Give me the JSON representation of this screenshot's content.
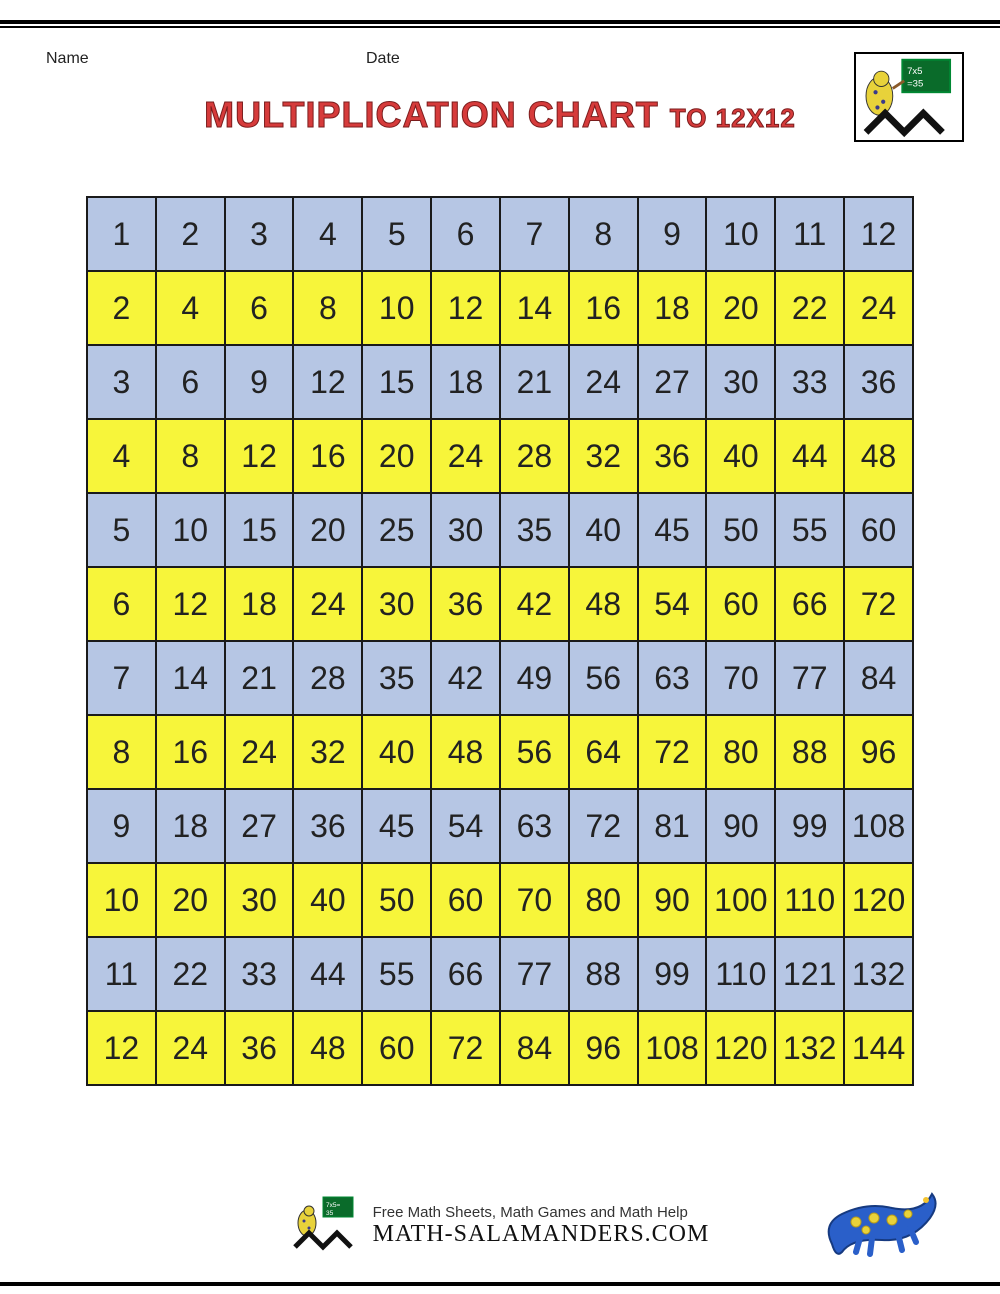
{
  "header": {
    "name_label": "Name",
    "date_label": "Date"
  },
  "title": {
    "main": "MULTIPLICATION CHART",
    "suffix": "TO 12X12",
    "color": "#d63b3b"
  },
  "table": {
    "type": "table",
    "size": 12,
    "row_colors": [
      "#b6c6e4",
      "#f7f53a"
    ],
    "border_color": "#1a1a1a",
    "cell_fontsize": 32,
    "rows": [
      [
        1,
        2,
        3,
        4,
        5,
        6,
        7,
        8,
        9,
        10,
        11,
        12
      ],
      [
        2,
        4,
        6,
        8,
        10,
        12,
        14,
        16,
        18,
        20,
        22,
        24
      ],
      [
        3,
        6,
        9,
        12,
        15,
        18,
        21,
        24,
        27,
        30,
        33,
        36
      ],
      [
        4,
        8,
        12,
        16,
        20,
        24,
        28,
        32,
        36,
        40,
        44,
        48
      ],
      [
        5,
        10,
        15,
        20,
        25,
        30,
        35,
        40,
        45,
        50,
        55,
        60
      ],
      [
        6,
        12,
        18,
        24,
        30,
        36,
        42,
        48,
        54,
        60,
        66,
        72
      ],
      [
        7,
        14,
        21,
        28,
        35,
        42,
        49,
        56,
        63,
        70,
        77,
        84
      ],
      [
        8,
        16,
        24,
        32,
        40,
        48,
        56,
        64,
        72,
        80,
        88,
        96
      ],
      [
        9,
        18,
        27,
        36,
        45,
        54,
        63,
        72,
        81,
        90,
        99,
        108
      ],
      [
        10,
        20,
        30,
        40,
        50,
        60,
        70,
        80,
        90,
        100,
        110,
        120
      ],
      [
        11,
        22,
        33,
        44,
        55,
        66,
        77,
        88,
        99,
        110,
        121,
        132
      ],
      [
        12,
        24,
        36,
        48,
        60,
        72,
        84,
        96,
        108,
        120,
        132,
        144
      ]
    ]
  },
  "footer": {
    "line1": "Free Math Sheets, Math Games and Math Help",
    "line2": "MATH-SALAMANDERS.COM"
  },
  "logo": {
    "board_text": "7x5=35",
    "salamander_color": "#e8d23a",
    "spot_color": "#3a3a8a"
  },
  "mascot": {
    "body_color": "#2a5fc9",
    "spot_color": "#e8d23a"
  }
}
